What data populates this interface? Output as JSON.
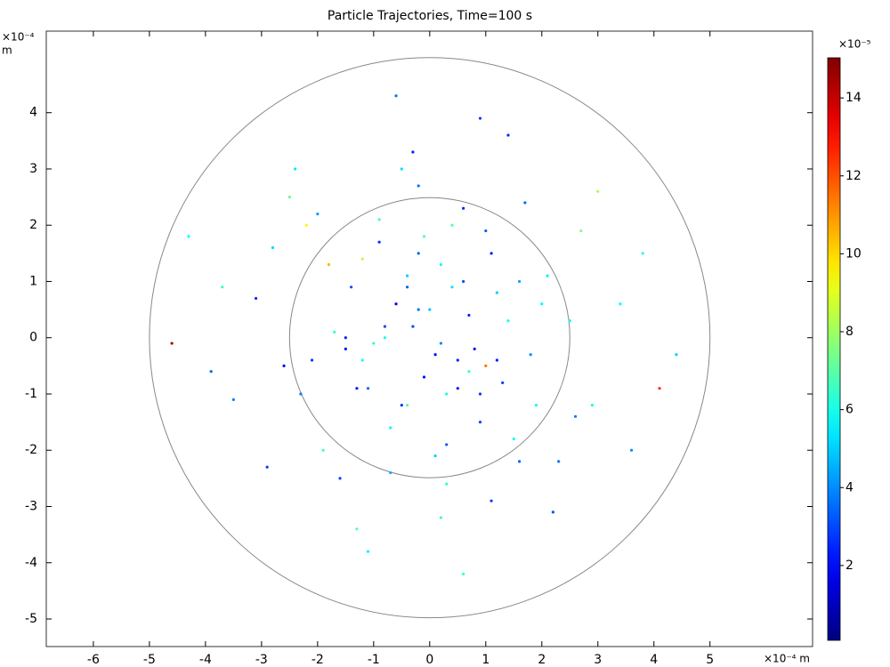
{
  "chart_data": {
    "type": "scatter",
    "title": "Particle Trajectories, Time=100 s",
    "x_axis_label": "×10⁻⁴ m",
    "y_axis_exponent": "×10⁻⁴",
    "y_axis_unit": "m",
    "colorbar_label": "×10⁻⁵",
    "colormap": "jet",
    "xlim": [
      -6.84,
      6.83
    ],
    "ylim": [
      -5.49,
      5.45
    ],
    "xticks": [
      -6,
      -5,
      -4,
      -3,
      -2,
      -1,
      0,
      1,
      2,
      3,
      4,
      5
    ],
    "yticks": [
      -5,
      -4,
      -3,
      -2,
      -1,
      0,
      1,
      2,
      3,
      4
    ],
    "clim": [
      0.08,
      15.03
    ],
    "cticks": [
      2,
      4,
      6,
      8,
      10,
      12,
      14
    ],
    "circle_radii": [
      5,
      2.5
    ],
    "series": [
      {
        "x": [
          -0.3,
          0.5,
          1.2,
          -1.1,
          0.2,
          -0.6,
          1.8,
          -1.7,
          0.9,
          -0.1,
          2.1,
          -2.3,
          0.4,
          -0.9,
          1.5,
          -1.4,
          0.1,
          0.7,
          -0.4,
          1.0,
          -2.0,
          2.5,
          -2.6,
          0.3,
          -0.2,
          1.3,
          -1.2,
          0.6,
          -0.7,
          2.9,
          -3.1,
          0.0,
          1.7,
          -1.9,
          0.8,
          -0.5,
          2.3,
          -2.2,
          1.1,
          -1.0,
          3.4,
          -3.5,
          0.2,
          -0.3,
          1.6,
          -1.6,
          2.7,
          -2.8,
          0.5,
          -0.8,
          3.8,
          -3.9,
          4.1,
          -4.3,
          1.4,
          -1.3,
          2.2,
          -2.4,
          3.0,
          -2.9,
          0.6,
          -0.6,
          1.9,
          -1.8,
          3.6,
          -3.7,
          0.9,
          -1.1,
          2.6,
          -2.5,
          4.4,
          -4.6,
          1.2,
          -0.4,
          0.3,
          -2.1,
          2.0,
          -0.2,
          1.0,
          -1.5,
          0.1,
          -0.2,
          0.4,
          -0.5,
          0.7,
          -0.8,
          1.1,
          -1.2,
          0.3,
          -0.1,
          0.6,
          -0.7,
          1.4,
          -1.3,
          0.2,
          -0.4,
          0.9,
          -0.9,
          1.6,
          -1.5
        ],
        "y": [
          0.2,
          -0.4,
          0.8,
          -0.9,
          1.3,
          0.6,
          -0.3,
          0.1,
          -1.5,
          -0.7,
          1.1,
          -1.0,
          2.0,
          1.7,
          -1.8,
          0.9,
          -2.1,
          0.4,
          -1.2,
          1.9,
          2.2,
          0.3,
          -0.5,
          -2.6,
          2.7,
          -0.8,
          1.4,
          1.0,
          -1.6,
          -1.2,
          0.7,
          0.5,
          2.4,
          -2.0,
          -0.2,
          3.0,
          -2.2,
          2.0,
          -2.9,
          -0.1,
          0.6,
          -1.1,
          -3.2,
          3.3,
          1.0,
          -2.5,
          1.9,
          1.6,
          -0.9,
          0.0,
          1.5,
          -0.6,
          -0.9,
          1.8,
          3.6,
          -3.4,
          -3.1,
          3.0,
          2.6,
          -2.3,
          -4.2,
          4.3,
          -1.2,
          1.3,
          -2.0,
          0.9,
          3.9,
          -3.8,
          -1.4,
          2.5,
          -0.3,
          -0.1,
          -0.4,
          0.9,
          -1.0,
          -0.4,
          0.6,
          1.5,
          -0.5,
          -0.2,
          -0.3,
          0.5,
          0.9,
          -1.2,
          -0.6,
          0.2,
          1.5,
          -0.4,
          -1.9,
          1.8,
          2.3,
          -2.4,
          0.3,
          -0.9,
          -0.1,
          1.1,
          -1.0,
          2.1,
          -2.2,
          0.0
        ],
        "c": [
          3,
          2.5,
          5,
          3.5,
          6,
          2,
          4,
          6.5,
          3,
          2.2,
          5.5,
          3.8,
          7,
          2.7,
          6,
          3.1,
          5,
          2.4,
          6.8,
          3.3,
          4.2,
          5.9,
          2.1,
          6.4,
          3.6,
          2.9,
          8.5,
          3.2,
          5.6,
          6.1,
          2.6,
          4.8,
          3.4,
          6.7,
          2.3,
          5.2,
          3.7,
          9.5,
          2.8,
          6.3,
          5.7,
          3.9,
          6.6,
          2.5,
          4.4,
          3.0,
          7.5,
          5.1,
          2.2,
          6.0,
          6.2,
          3.4,
          12.5,
          5.8,
          2.6,
          6.9,
          3.1,
          5.4,
          8.2,
          2.9,
          6.5,
          3.7,
          5.9,
          10.5,
          4.1,
          6.3,
          2.7,
          5.5,
          3.8,
          7.2,
          5.0,
          14.5,
          2.4,
          3.3,
          6.1,
          2.8,
          5.6,
          3.5,
          11.5,
          2.2,
          2.1,
          3.6,
          5.3,
          2.7,
          6.4,
          3.0,
          2.4,
          5.8,
          3.2,
          6.9,
          2.6,
          4.5,
          6.1,
          2.3,
          3.9,
          5.0,
          2.8,
          6.6,
          3.4,
          2.5
        ]
      }
    ]
  }
}
